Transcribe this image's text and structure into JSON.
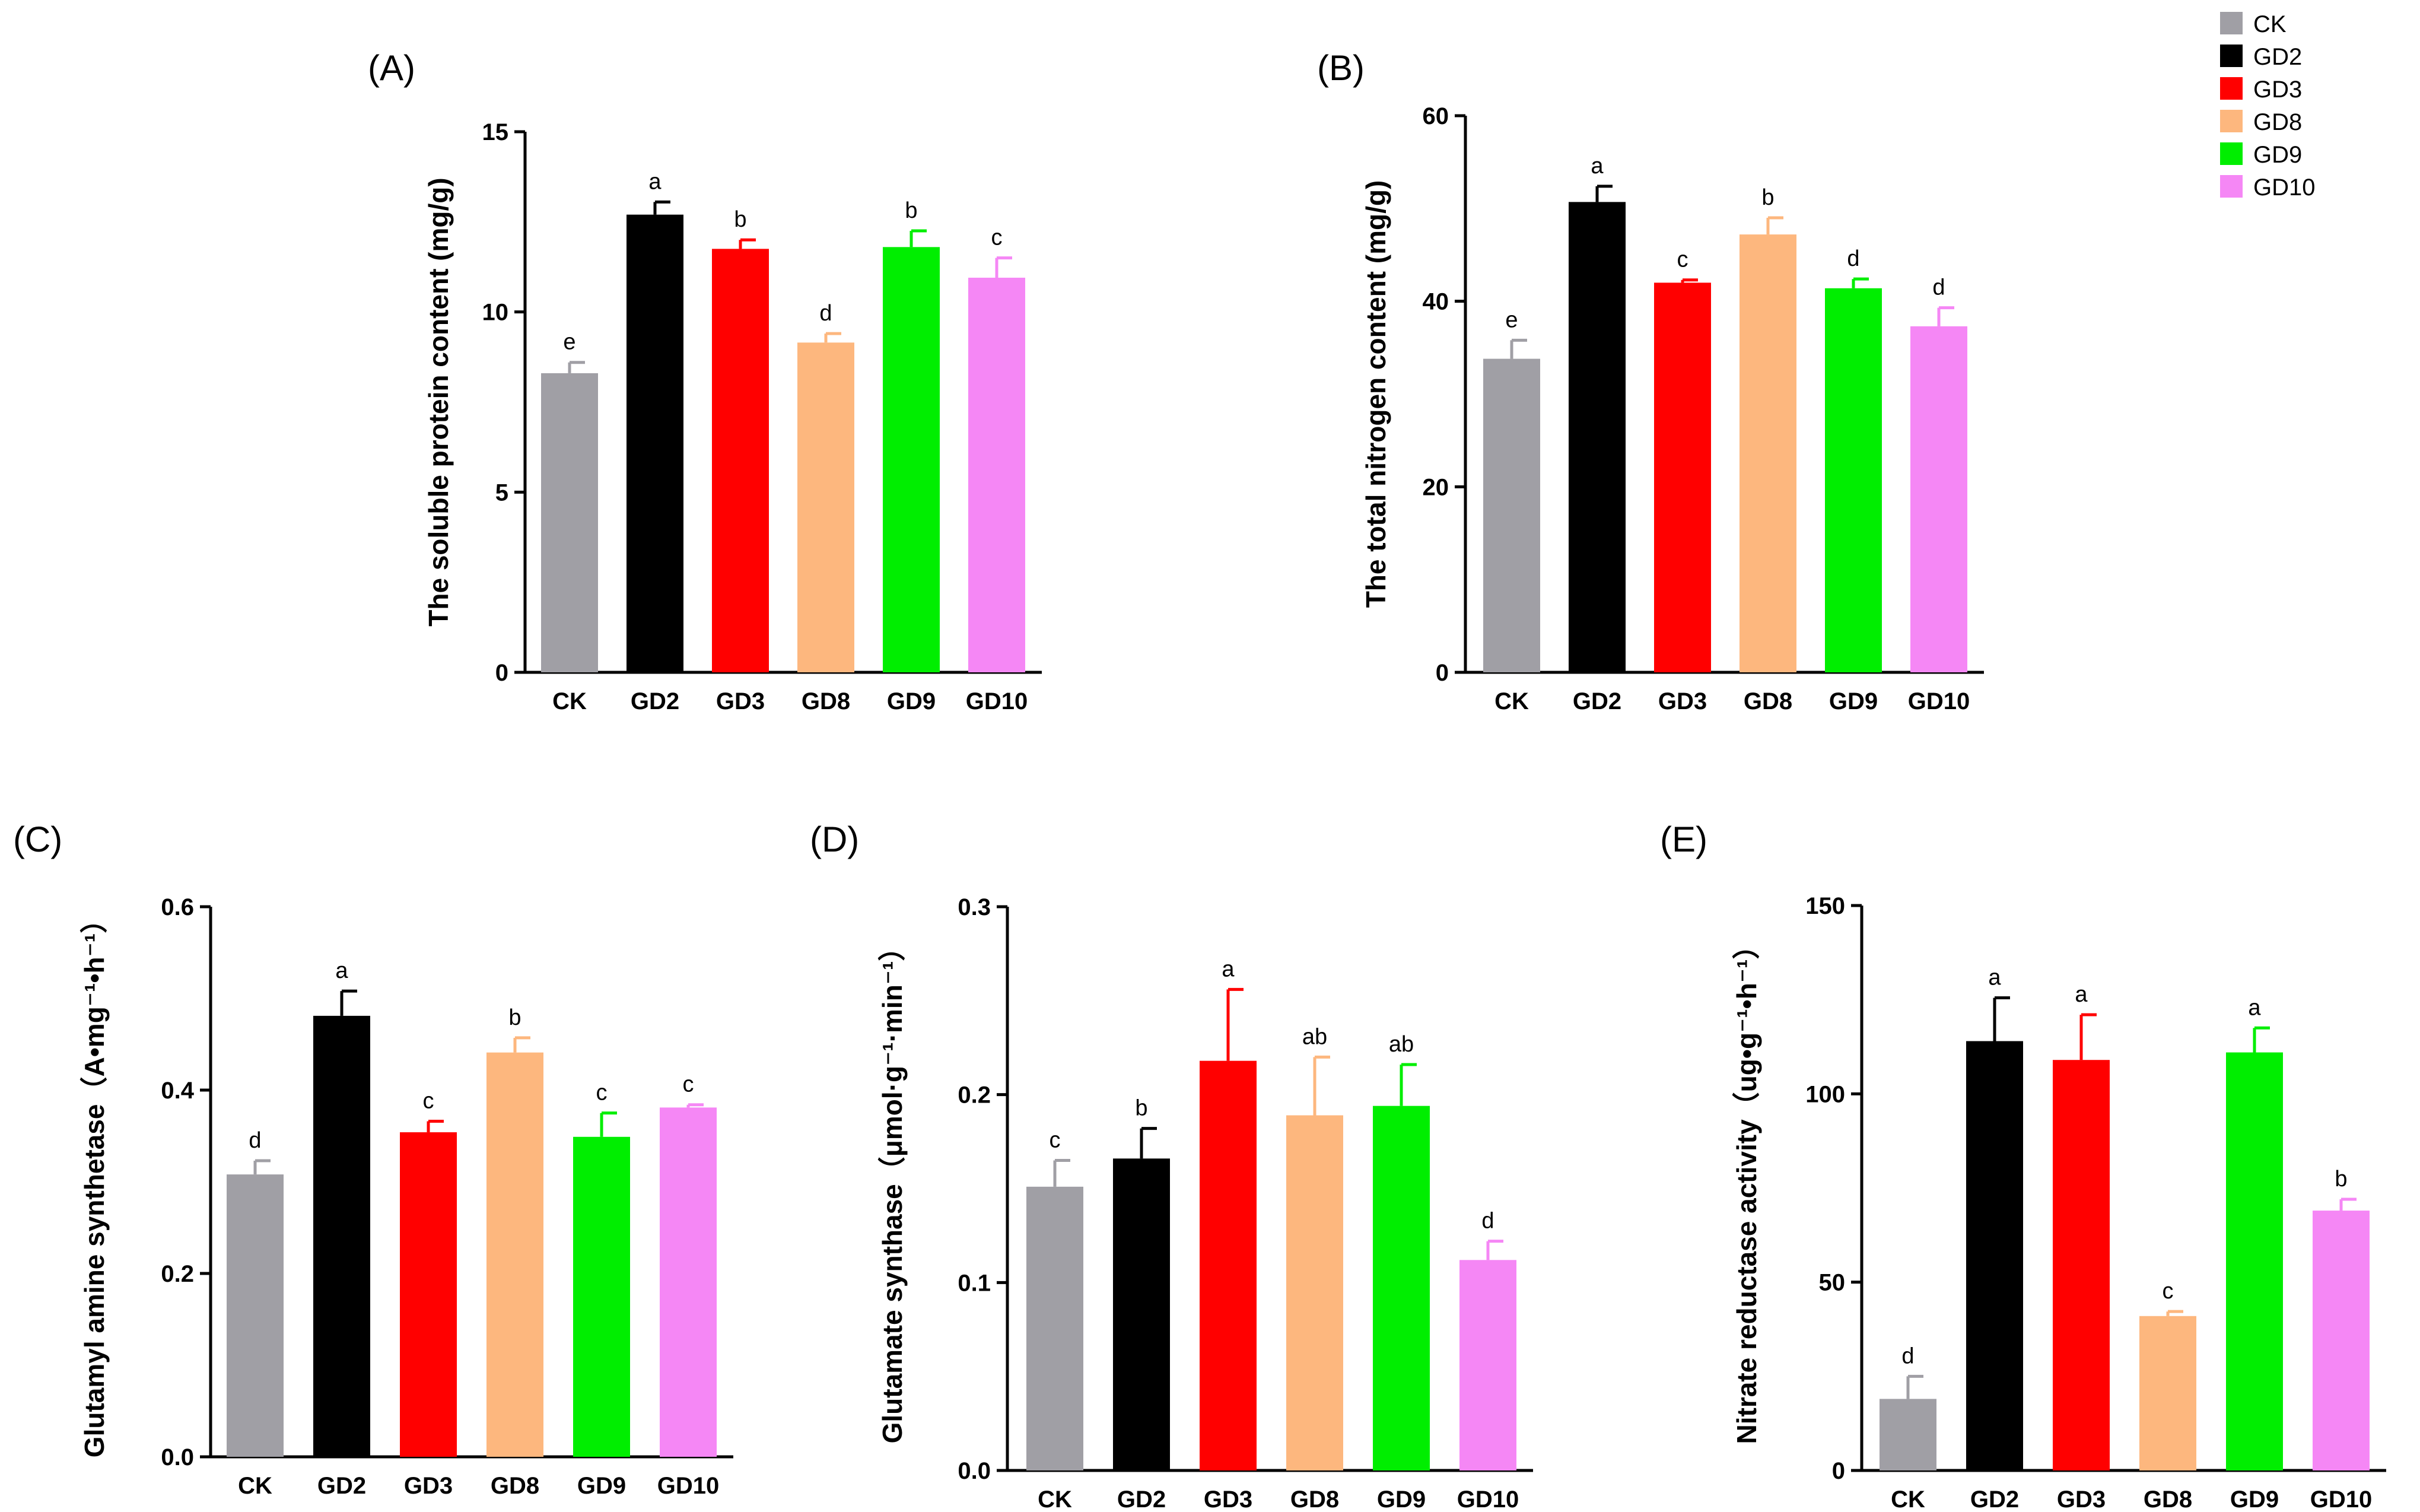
{
  "legend": [
    {
      "name": "CK",
      "color": "#a09fa5"
    },
    {
      "name": "GD2",
      "color": "#000000"
    },
    {
      "name": "GD3",
      "color": "#ff0000"
    },
    {
      "name": "GD8",
      "color": "#fdb77e"
    },
    {
      "name": "GD9",
      "color": "#00ee00"
    },
    {
      "name": "GD10",
      "color": "#f587f5"
    }
  ],
  "chart_data": [
    {
      "panel": "(A)",
      "type": "bar",
      "ylabel": "The soluble protein content (mg/g)",
      "categories": [
        "CK",
        "GD2",
        "GD3",
        "GD8",
        "GD9",
        "GD10"
      ],
      "values": [
        8.3,
        12.7,
        11.75,
        9.15,
        11.8,
        10.95
      ],
      "errors": [
        0.3,
        0.35,
        0.25,
        0.25,
        0.45,
        0.55
      ],
      "letters": [
        "e",
        "a",
        "b",
        "d",
        "b",
        "c"
      ],
      "ylim": [
        0,
        15
      ],
      "yticks": [
        0,
        5,
        10,
        15
      ]
    },
    {
      "panel": "(B)",
      "type": "bar",
      "ylabel": "The total nitrogen content (mg/g)",
      "categories": [
        "CK",
        "GD2",
        "GD3",
        "GD8",
        "GD9",
        "GD10"
      ],
      "values": [
        33.8,
        50.7,
        42.0,
        47.2,
        41.4,
        37.3
      ],
      "errors": [
        2.0,
        1.7,
        0.3,
        1.8,
        1.0,
        2.0
      ],
      "letters": [
        "e",
        "a",
        "c",
        "b",
        "d",
        "d"
      ],
      "ylim": [
        0,
        60
      ],
      "yticks": [
        0,
        20,
        40,
        60
      ]
    },
    {
      "panel": "(C)",
      "type": "bar",
      "ylabel": "Glutamyl amine synthetase（A•mg⁻¹•h⁻¹）",
      "categories": [
        "CK",
        "GD2",
        "GD3",
        "GD8",
        "GD9",
        "GD10"
      ],
      "values": [
        0.308,
        0.481,
        0.354,
        0.441,
        0.349,
        0.381
      ],
      "errors": [
        0.015,
        0.027,
        0.012,
        0.016,
        0.026,
        0.003
      ],
      "letters": [
        "d",
        "a",
        "c",
        "b",
        "c",
        "c"
      ],
      "ylim": [
        0,
        0.6
      ],
      "yticks": [
        0.0,
        0.2,
        0.4,
        0.6
      ]
    },
    {
      "panel": "(D)",
      "type": "bar",
      "ylabel": "Glutamate synthase（μmol·g⁻¹·min⁻¹）",
      "categories": [
        "CK",
        "GD2",
        "GD3",
        "GD8",
        "GD9",
        "GD10"
      ],
      "values": [
        0.151,
        0.166,
        0.218,
        0.189,
        0.194,
        0.112
      ],
      "errors": [
        0.014,
        0.016,
        0.038,
        0.031,
        0.022,
        0.01
      ],
      "letters": [
        "c",
        "b",
        "a",
        "ab",
        "ab",
        "d"
      ],
      "ylim": [
        0,
        0.3
      ],
      "yticks": [
        0.0,
        0.1,
        0.2,
        0.3
      ]
    },
    {
      "panel": "(E)",
      "type": "bar",
      "ylabel": "Nitrate reductase activity（ug•g⁻¹•h⁻¹）",
      "categories": [
        "CK",
        "GD2",
        "GD3",
        "GD8",
        "GD9",
        "GD10"
      ],
      "values": [
        19.0,
        114.0,
        109.0,
        41.0,
        111.0,
        69.0
      ],
      "errors": [
        6.0,
        11.5,
        12.0,
        1.2,
        6.5,
        3.0
      ],
      "letters": [
        "d",
        "a",
        "a",
        "c",
        "a",
        "b"
      ],
      "ylim": [
        0,
        150
      ],
      "yticks": [
        0,
        50,
        100,
        150
      ]
    }
  ]
}
